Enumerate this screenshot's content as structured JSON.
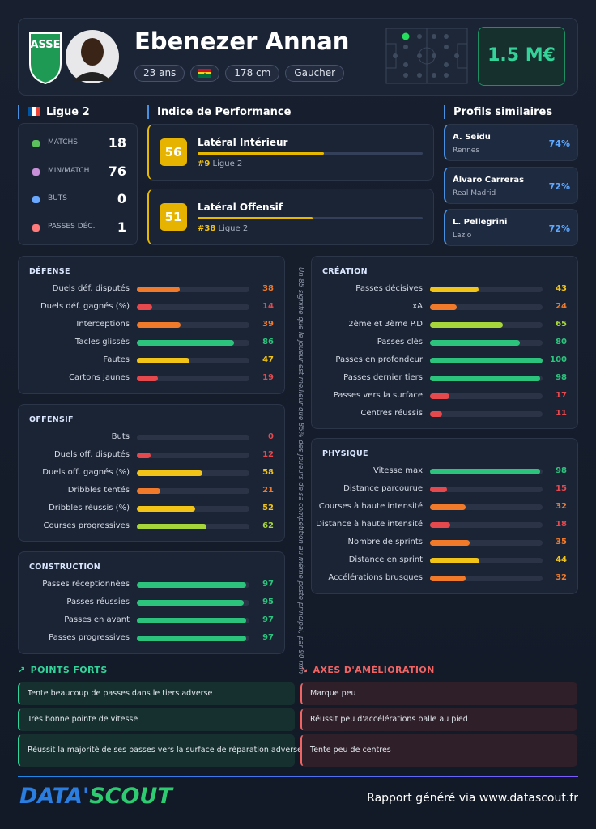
{
  "header": {
    "name": "Ebenezer Annan",
    "tags": [
      "23 ans",
      "178 cm",
      "Gaucher"
    ],
    "value": "1.5 M€"
  },
  "league": {
    "name": "Ligue 2",
    "stats": [
      {
        "label": "MATCHS",
        "value": 18
      },
      {
        "label": "MIN/MATCH",
        "value": 76
      },
      {
        "label": "BUTS",
        "value": 0
      },
      {
        "label": "PASSES DÉC.",
        "value": 1
      }
    ]
  },
  "performance": {
    "title": "Indice de Performance",
    "items": [
      {
        "score": 56,
        "role": "Latéral Intérieur",
        "rank": "#9",
        "league": "Ligue 2"
      },
      {
        "score": 51,
        "role": "Latéral Offensif",
        "rank": "#38",
        "league": "Ligue 2"
      }
    ]
  },
  "similar": {
    "title": "Profils similaires",
    "items": [
      {
        "name": "A. Seidu",
        "club": "Rennes",
        "match": "74%"
      },
      {
        "name": "Álvaro Carreras",
        "club": "Real Madrid",
        "match": "72%"
      },
      {
        "name": "L. Pellegrini",
        "club": "Lazio",
        "match": "72%"
      }
    ]
  },
  "sections": [
    {
      "title": "DÉFENSE",
      "metrics": [
        {
          "label": "Duels déf. disputés",
          "value": 38
        },
        {
          "label": "Duels déf. gagnés (%)",
          "value": 14
        },
        {
          "label": "Interceptions",
          "value": 39
        },
        {
          "label": "Tacles glissés",
          "value": 86
        },
        {
          "label": "Fautes",
          "value": 47
        },
        {
          "label": "Cartons jaunes",
          "value": 19
        }
      ]
    },
    {
      "title": "OFFENSIF",
      "metrics": [
        {
          "label": "Buts",
          "value": 0
        },
        {
          "label": "Duels off. disputés",
          "value": 12
        },
        {
          "label": "Duels off. gagnés (%)",
          "value": 58
        },
        {
          "label": "Dribbles tentés",
          "value": 21
        },
        {
          "label": "Dribbles réussis (%)",
          "value": 52
        },
        {
          "label": "Courses progressives",
          "value": 62
        }
      ]
    },
    {
      "title": "CONSTRUCTION",
      "metrics": [
        {
          "label": "Passes réceptionnées",
          "value": 97
        },
        {
          "label": "Passes réussies",
          "value": 95
        },
        {
          "label": "Passes en avant",
          "value": 97
        },
        {
          "label": "Passes progressives",
          "value": 97
        }
      ]
    },
    {
      "title": "CRÉATION",
      "metrics": [
        {
          "label": "Passes décisives",
          "value": 43
        },
        {
          "label": "xA",
          "value": 24
        },
        {
          "label": "2ème et 3ème P.D",
          "value": 65
        },
        {
          "label": "Passes clés",
          "value": 80
        },
        {
          "label": "Passes en profondeur",
          "value": 100
        },
        {
          "label": "Passes dernier tiers",
          "value": 98
        },
        {
          "label": "Passes vers la surface",
          "value": 17
        },
        {
          "label": "Centres réussis",
          "value": 11
        }
      ]
    },
    {
      "title": "PHYSIQUE",
      "metrics": [
        {
          "label": "Vitesse max",
          "value": 98
        },
        {
          "label": "Distance parcourue",
          "value": 15
        },
        {
          "label": "Courses à haute intensité",
          "value": 32
        },
        {
          "label": "Distance à haute intensité",
          "value": 18
        },
        {
          "label": "Nombre de sprints",
          "value": 35
        },
        {
          "label": "Distance en sprint",
          "value": 44
        },
        {
          "label": "Accélérations brusques",
          "value": 32
        }
      ]
    }
  ],
  "note": "Un 85 signifie que le joueur est meilleur que 85% des joueurs de sa compétition au même poste principal, par 90 min",
  "strengths": {
    "title": "POINTS FORTS",
    "items": [
      "Tente beaucoup de passes dans le tiers adverse",
      "Très bonne pointe de vitesse",
      "Réussit la majorité de ses passes vers la surface de réparation adverse"
    ]
  },
  "weaknesses": {
    "title": "AXES D'AMÉLIORATION",
    "items": [
      "Marque peu",
      "Réussit peu d'accélérations balle au pied",
      "Tente peu de centres"
    ]
  },
  "footer": {
    "brand_left": "DATA'",
    "brand_right": "SCOUT",
    "text": "Rapport généré via www.datascout.fr"
  }
}
